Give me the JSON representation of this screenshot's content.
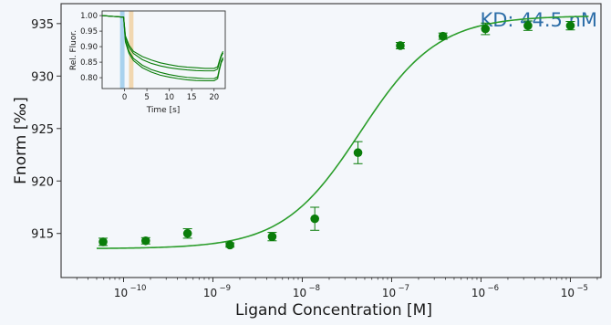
{
  "chart_data": [
    {
      "type": "scatter",
      "role": "main",
      "xlabel": "Ligand Concentration [M]",
      "ylabel": "Fnorm [‰]",
      "x_scale": "log",
      "xlim": [
        2e-11,
        2.2e-05
      ],
      "ylim": [
        910.8,
        936.9
      ],
      "x_ticks": [
        1e-10,
        1e-09,
        1e-08,
        1e-07,
        1e-06,
        1e-05
      ],
      "x_tick_labels": [
        "10",
        "10",
        "10",
        "10",
        "10",
        "10"
      ],
      "x_tick_exponents": [
        "−10",
        "−9",
        "−8",
        "−7",
        "−6",
        "−5"
      ],
      "y_ticks": [
        915,
        920,
        925,
        930,
        935
      ],
      "y_tick_labels": [
        "915",
        "920",
        "925",
        "930",
        "935"
      ],
      "annotation": "KD: 44.5 nM",
      "grid": false,
      "series": [
        {
          "kind": "points_with_error_bars",
          "color": "#0a7d0a",
          "x": [
            5.9e-11,
            1.77e-10,
            5.2e-10,
            1.55e-09,
            4.6e-09,
            1.38e-08,
            4.2e-08,
            1.25e-07,
            3.75e-07,
            1.12e-06,
            3.35e-06,
            1e-05
          ],
          "y": [
            914.2,
            914.3,
            915.0,
            913.9,
            914.7,
            916.4,
            922.7,
            932.9,
            933.8,
            934.5,
            934.8,
            934.8
          ],
          "error": [
            0.35,
            0.3,
            0.45,
            0.2,
            0.4,
            1.1,
            1.05,
            0.3,
            0.3,
            0.55,
            0.45,
            0.4
          ]
        },
        {
          "kind": "fit_curve",
          "color": "#2a9d2a",
          "bottom": 913.55,
          "top": 935.75,
          "kd_molar": 4.45e-08
        }
      ]
    },
    {
      "type": "line",
      "role": "inset",
      "xlabel": "Time [s]",
      "ylabel": "Rel. Fluor.",
      "xlim": [
        -5,
        22.5
      ],
      "ylim": [
        0.765,
        1.015
      ],
      "x_ticks": [
        0,
        5,
        10,
        15,
        20
      ],
      "x_tick_labels": [
        "0",
        "5",
        "10",
        "15",
        "20"
      ],
      "y_ticks": [
        0.8,
        0.85,
        0.9,
        0.95,
        1.0
      ],
      "y_tick_labels": [
        "0.80",
        "0.85",
        "0.90",
        "0.95",
        "1.00"
      ],
      "highlight_regions": [
        {
          "x": [
            -1,
            0
          ],
          "color": "#a9d2ee"
        },
        {
          "x": [
            1,
            2
          ],
          "color": "#f1d7b0"
        }
      ],
      "series": [
        {
          "color": "#0a7d0a",
          "x": [
            -5,
            -0.2,
            0.2,
            1,
            2,
            4,
            6,
            8,
            10,
            12,
            14,
            16,
            18,
            20,
            20.8,
            21.2,
            21.6,
            22
          ],
          "y": [
            1.0,
            0.995,
            0.935,
            0.905,
            0.885,
            0.868,
            0.857,
            0.848,
            0.842,
            0.837,
            0.834,
            0.832,
            0.83,
            0.83,
            0.835,
            0.855,
            0.873,
            0.885
          ]
        },
        {
          "color": "#0a7d0a",
          "x": [
            -5,
            -0.2,
            0.2,
            1,
            2,
            4,
            6,
            8,
            10,
            12,
            14,
            16,
            18,
            20,
            20.8,
            21.2,
            21.6,
            22
          ],
          "y": [
            1.0,
            0.995,
            0.93,
            0.898,
            0.878,
            0.858,
            0.846,
            0.838,
            0.832,
            0.828,
            0.825,
            0.823,
            0.822,
            0.822,
            0.828,
            0.85,
            0.868,
            0.88
          ]
        },
        {
          "color": "#0a7d0a",
          "x": [
            -5,
            -0.2,
            0.2,
            1,
            2,
            4,
            6,
            8,
            10,
            12,
            14,
            16,
            18,
            20,
            20.8,
            21.2,
            21.6,
            22
          ],
          "y": [
            1.0,
            0.995,
            0.92,
            0.885,
            0.862,
            0.84,
            0.826,
            0.817,
            0.81,
            0.805,
            0.801,
            0.799,
            0.797,
            0.797,
            0.803,
            0.83,
            0.853,
            0.865
          ]
        },
        {
          "color": "#0a7d0a",
          "x": [
            -5,
            -0.2,
            0.2,
            1,
            2,
            4,
            6,
            8,
            10,
            12,
            14,
            16,
            18,
            20,
            20.8,
            21.2,
            21.6,
            22
          ],
          "y": [
            1.0,
            0.995,
            0.915,
            0.878,
            0.855,
            0.832,
            0.818,
            0.808,
            0.802,
            0.797,
            0.793,
            0.791,
            0.79,
            0.79,
            0.797,
            0.825,
            0.848,
            0.86
          ]
        }
      ]
    }
  ]
}
